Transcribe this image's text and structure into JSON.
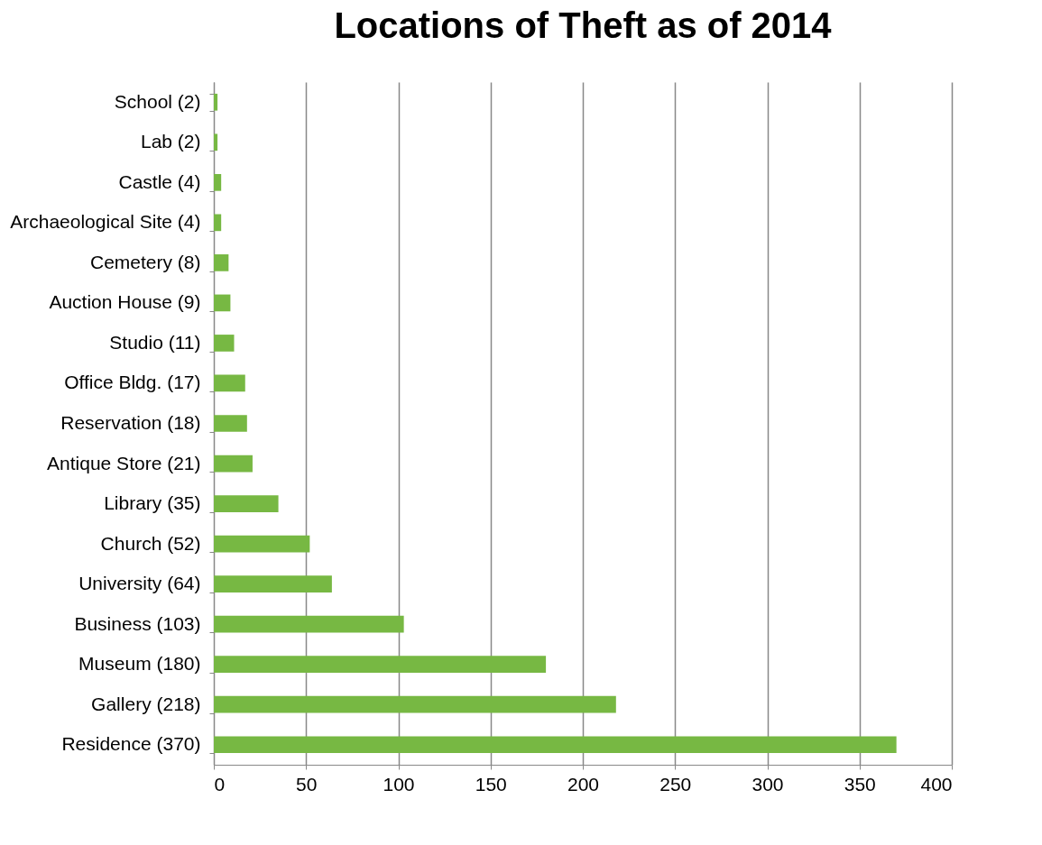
{
  "chart_data": {
    "type": "bar",
    "orientation": "horizontal",
    "title": "Locations of Theft as of 2014",
    "categories": [
      "School (2)",
      "Lab (2)",
      "Castle (4)",
      "Archaeological Site (4)",
      "Cemetery (8)",
      "Auction House (9)",
      "Studio (11)",
      "Office Bldg. (17)",
      "Reservation (18)",
      "Antique Store (21)",
      "Library (35)",
      "Church (52)",
      "University (64)",
      "Business (103)",
      "Museum (180)",
      "Gallery (218)",
      "Residence (370)"
    ],
    "values": [
      2,
      2,
      4,
      4,
      8,
      9,
      11,
      17,
      18,
      21,
      35,
      52,
      64,
      103,
      180,
      218,
      370
    ],
    "color": "#77b843",
    "xlim": [
      0,
      400
    ],
    "xticks": [
      0,
      50,
      100,
      150,
      200,
      250,
      300,
      350,
      400
    ],
    "grid": "x"
  }
}
